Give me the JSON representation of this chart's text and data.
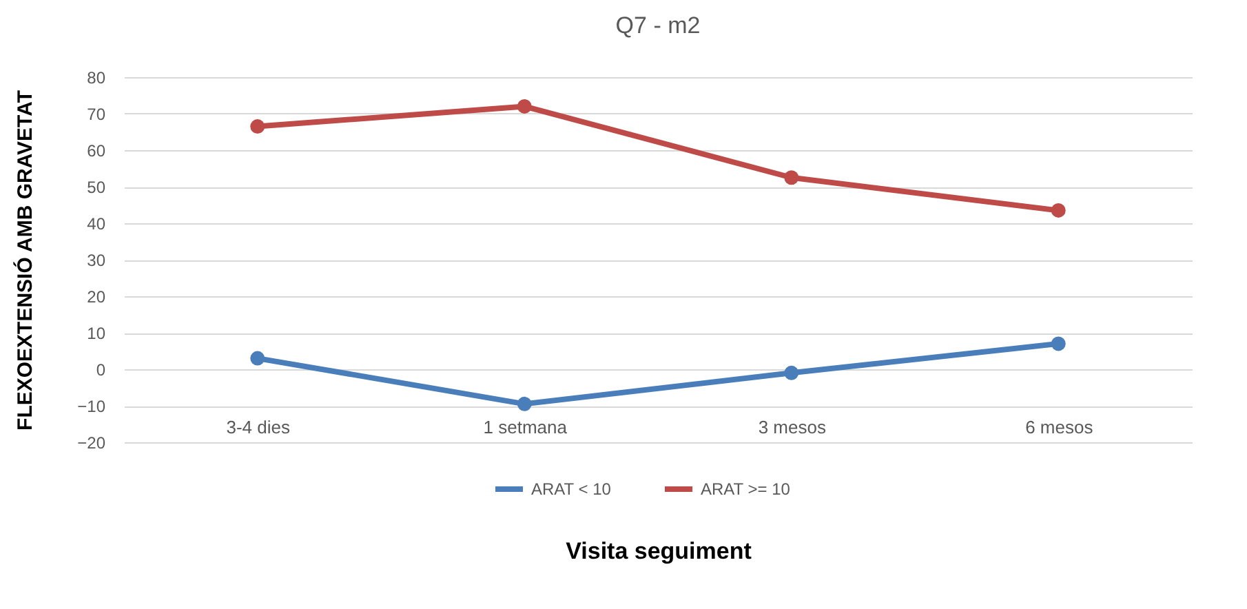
{
  "chart_data": {
    "type": "line",
    "title": "Q7 - m2",
    "xlabel": "Visita seguiment",
    "ylabel": "FLEXOEXTENSIÓ AMB GRAVETAT",
    "categories": [
      "3-4 dies",
      "1 setmana",
      "3 mesos",
      "6 mesos"
    ],
    "series": [
      {
        "name": "ARAT < 10",
        "color": "#4a7ebb",
        "values": [
          3,
          -9.5,
          -1,
          7
        ]
      },
      {
        "name": "ARAT >= 10",
        "color": "#be4b48",
        "values": [
          66.5,
          72,
          52.5,
          43.5
        ]
      }
    ],
    "ylim": [
      -20,
      80
    ],
    "yticks": [
      -20,
      -10,
      0,
      10,
      20,
      30,
      40,
      50,
      60,
      70,
      80
    ],
    "grid": "y",
    "legend": "bottom",
    "marker": "circle",
    "line_style": "solid"
  }
}
